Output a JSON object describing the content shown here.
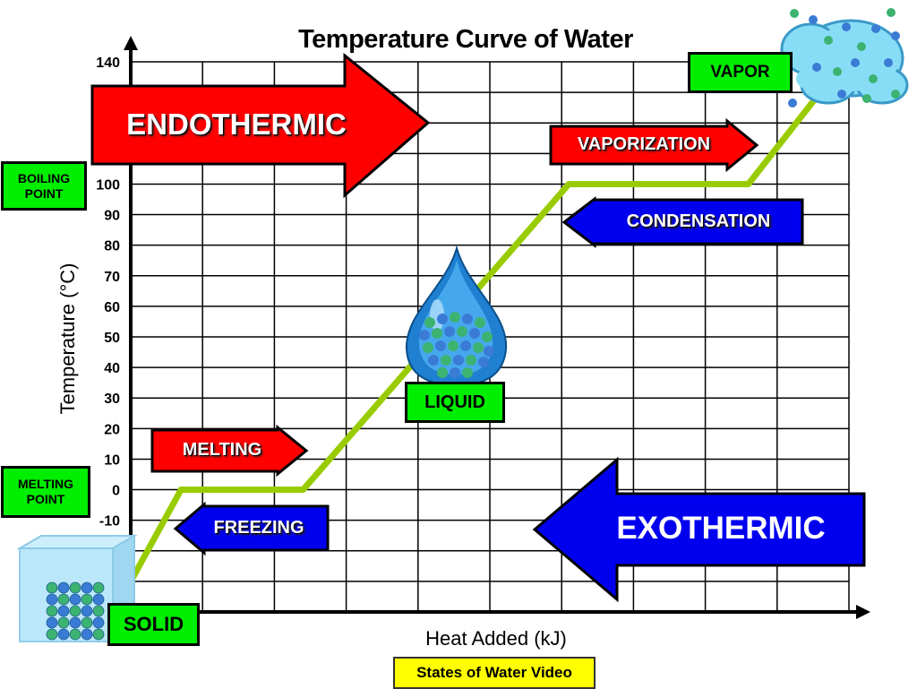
{
  "chart_data": {
    "type": "line",
    "title": "Temperature Curve of Water",
    "xlabel": "Heat Added (kJ)",
    "ylabel": "Temperature (°C)",
    "yticks": [
      -10,
      0,
      10,
      20,
      30,
      40,
      50,
      60,
      70,
      80,
      90,
      100,
      140
    ],
    "ylim": [
      -40,
      140
    ],
    "xlim": [
      0,
      10
    ],
    "grid": true,
    "series": [
      {
        "x": [
          0,
          0.7,
          2.4,
          6.1,
          8.6,
          9.6
        ],
        "y": [
          -30,
          0,
          0,
          100,
          100,
          130
        ]
      }
    ]
  },
  "colors": {
    "curve": "#99cc00",
    "endothermic": "#ff0000",
    "exothermic": "#0000ee",
    "state_box": "#00ee00",
    "video_button": "#ffff00"
  },
  "labels": {
    "endothermic": "ENDOTHERMIC",
    "exothermic": "EXOTHERMIC",
    "vaporization": "VAPORIZATION",
    "condensation": "CONDENSATION",
    "melting": "MELTING",
    "freezing": "FREEZING"
  },
  "states": {
    "vapor": "VAPOR",
    "liquid": "LIQUID",
    "solid": "SOLID"
  },
  "points": {
    "boiling": "BOILING POINT",
    "melting": "MELTING POINT"
  },
  "video_button": "States of Water Video",
  "icons": [
    "vapor-cloud-icon",
    "water-drop-icon",
    "ice-cube-icon"
  ]
}
